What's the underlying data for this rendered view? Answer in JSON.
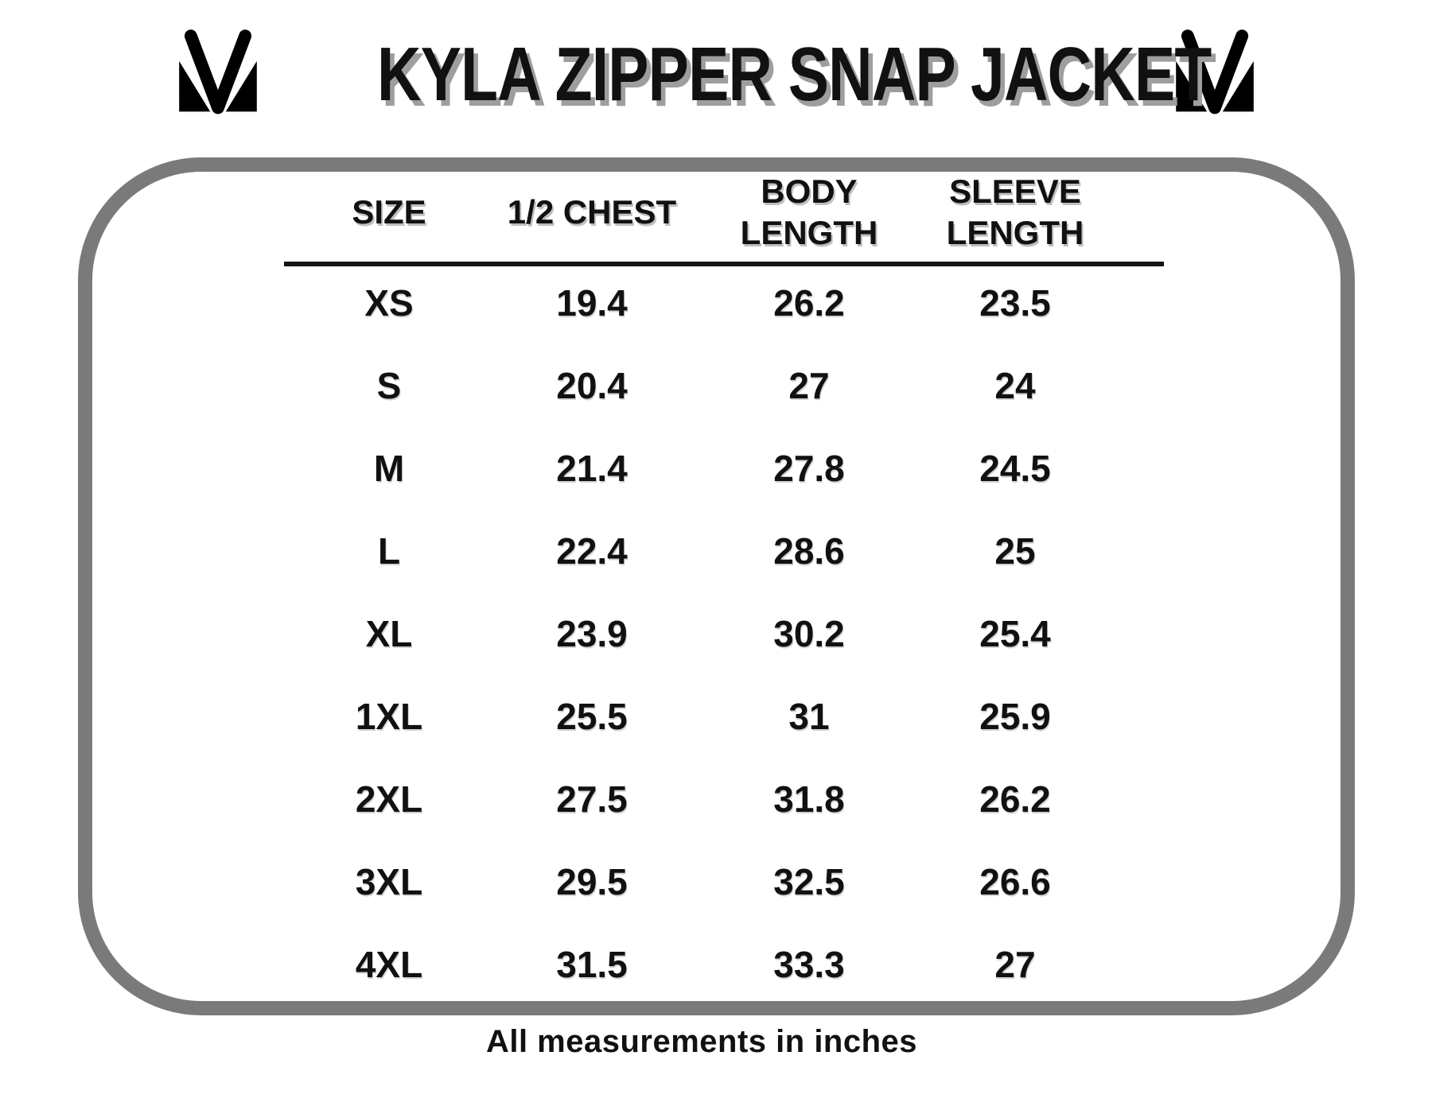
{
  "chart_data": {
    "type": "table",
    "title": "KYLA ZIPPER SNAP JACKET",
    "columns": [
      "SIZE",
      "1/2 CHEST",
      "BODY LENGTH",
      "SLEEVE LENGTH"
    ],
    "rows": [
      [
        "XS",
        "19.4",
        "26.2",
        "23.5"
      ],
      [
        "S",
        "20.4",
        "27",
        "24"
      ],
      [
        "M",
        "21.4",
        "27.8",
        "24.5"
      ],
      [
        "L",
        "22.4",
        "28.6",
        "25"
      ],
      [
        "XL",
        "23.9",
        "30.2",
        "25.4"
      ],
      [
        "1XL",
        "25.5",
        "31",
        "25.9"
      ],
      [
        "2XL",
        "27.5",
        "31.8",
        "26.2"
      ],
      [
        "3XL",
        "29.5",
        "32.5",
        "26.6"
      ],
      [
        "4XL",
        "31.5",
        "33.3",
        "27"
      ]
    ],
    "note": "All measurements in inches"
  },
  "icons": {
    "left_logo": "mv-monogram-logo",
    "right_logo": "mv-monogram-logo"
  },
  "colors": {
    "border_gray": "#7a7a7a",
    "title_shadow": "#9e9e9e",
    "text": "#111111",
    "background": "#ffffff"
  }
}
